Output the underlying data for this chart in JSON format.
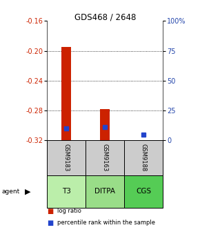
{
  "title": "GDS468 / 2648",
  "samples": [
    "GSM9183",
    "GSM9163",
    "GSM9188"
  ],
  "agents": [
    "T3",
    "DITPA",
    "CGS"
  ],
  "log_ratio_values": [
    -0.195,
    -0.278,
    -0.323
  ],
  "log_ratio_bar_bottom": [
    -0.32,
    -0.32,
    -0.32
  ],
  "percentile_values": [
    10,
    11,
    5
  ],
  "ylim_left": [
    -0.32,
    -0.16
  ],
  "ylim_right": [
    0,
    100
  ],
  "left_ticks": [
    -0.32,
    -0.28,
    -0.24,
    -0.2,
    -0.16
  ],
  "right_ticks": [
    0,
    25,
    50,
    75,
    100
  ],
  "right_tick_labels": [
    "0",
    "25",
    "50",
    "75",
    "100%"
  ],
  "bar_color": "#cc2200",
  "dot_color": "#2244cc",
  "sample_box_color": "#cccccc",
  "agent_box_color_T3": "#bbeeaa",
  "agent_box_color_DITPA": "#99dd88",
  "agent_box_color_CGS": "#55cc55",
  "title_color": "#000000",
  "left_tick_color": "#cc2200",
  "right_tick_color": "#2244aa",
  "legend_red": "log ratio",
  "legend_blue": "percentile rank within the sample",
  "bar_width": 0.25
}
